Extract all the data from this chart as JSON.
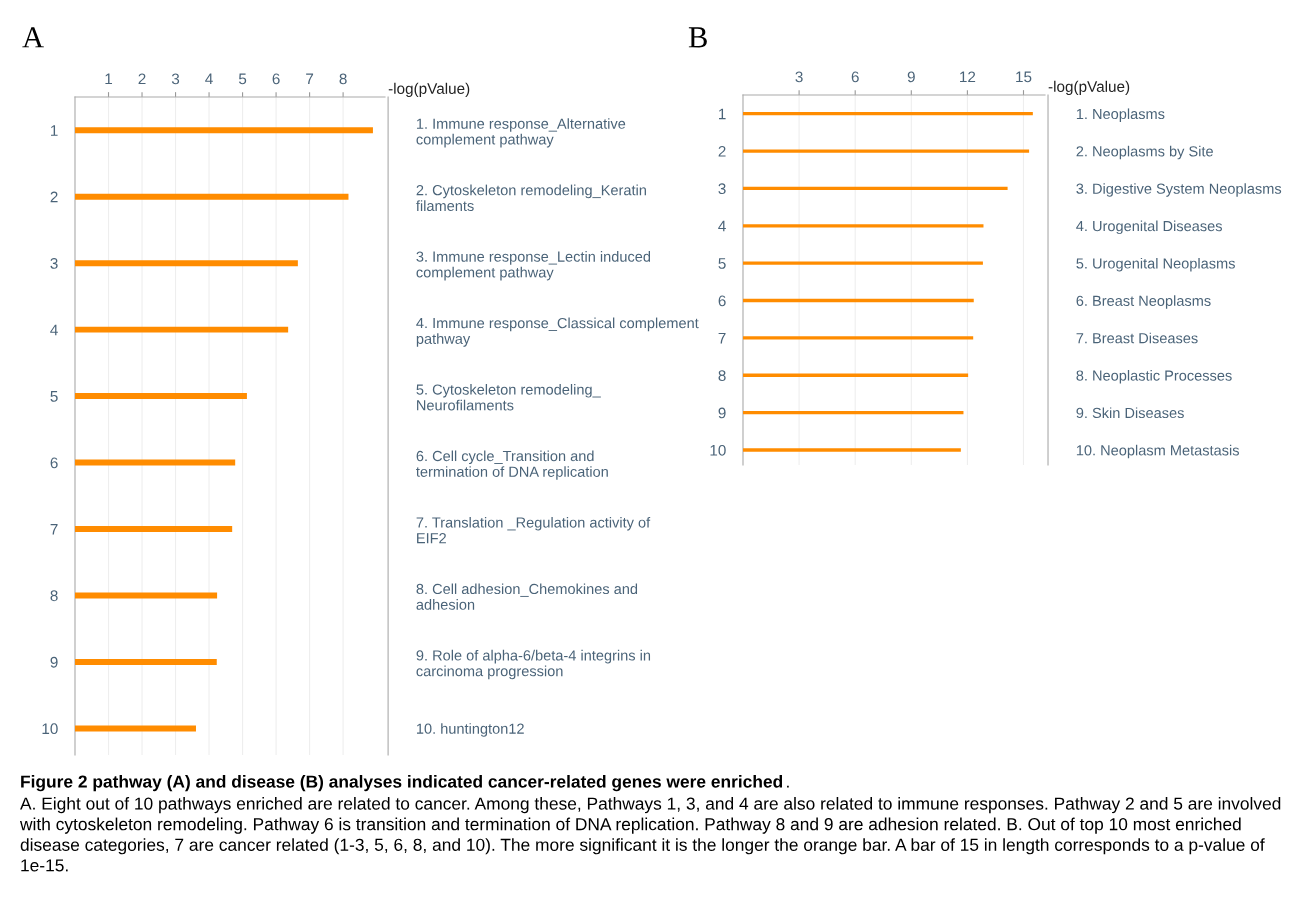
{
  "chart_data": [
    {
      "type": "bar",
      "orientation": "horizontal",
      "title": "A",
      "xlabel": "-log(pValue)",
      "color": "#ff8c00",
      "grid": "x",
      "categories": [
        "1",
        "2",
        "3",
        "4",
        "5",
        "6",
        "7",
        "8",
        "9",
        "10"
      ],
      "y2_categories": [
        "1. Immune response_Alternative\ncomplement pathway",
        "2. Cytoskeleton remodeling_Keratin\nfilaments",
        "3. Immune response_Lectin induced\ncomplement pathway",
        "4. Immune response_Classical complement\npathway",
        "5. Cytoskeleton remodeling_\nNeurofilaments",
        "6. Cell cycle_Transition and\ntermination of DNA replication",
        "7. Translation _Regulation activity of\nEIF2",
        "8. Cell adhesion_Chemokines and\nadhesion",
        "9. Role of alpha-6/beta-4 integrins in\ncarcinoma progression",
        "10. huntington12"
      ],
      "values": [
        8.89,
        8.16,
        6.65,
        6.36,
        5.13,
        4.78,
        4.69,
        4.24,
        4.23,
        3.61
      ],
      "xlim": [
        0,
        9.25
      ],
      "xticks": [
        1,
        2,
        3,
        4,
        5,
        6,
        7,
        8
      ],
      "annotations": [
        "Figure 2 pathway (A) and disease (B) analyses indicated cancer-related genes were enriched",
        ". A. Eight out of 10 pathways enriched are related to cancer. Among these, Pathways 1, 3, and 4 are also related to immune responses. Pathway 2 and 5 are involved with cytoskeleton remodeling. Pathway 6 is transition and termination of DNA replication. Pathway 8 and 9 are adhesion related. B. Out of top 10 most enriched disease categories, 7 are cancer related (1-3, 5, 6, 8, and 10). The more significant it is the longer the orange bar. A bar of 15 in length corresponds to a p-value of 1e-15."
      ]
    },
    {
      "type": "bar",
      "orientation": "horizontal",
      "title": "B",
      "xlabel": "-log(pValue)",
      "color": "#ff8c00",
      "grid": "x",
      "categories": [
        "1",
        "2",
        "3",
        "4",
        "5",
        "6",
        "7",
        "8",
        "9",
        "10"
      ],
      "y2_categories": [
        "1. Neoplasms",
        "2. Neoplasms by Site",
        "3. Digestive System Neoplasms",
        "4. Urogenital Diseases",
        "5. Urogenital Neoplasms",
        "6. Breast Neoplasms",
        "7. Breast Diseases",
        "8. Neoplastic Processes",
        "9. Skin Diseases",
        "10. Neoplasm Metastasis"
      ],
      "values": [
        15.5,
        15.3,
        14.15,
        12.86,
        12.83,
        12.34,
        12.31,
        12.04,
        11.79,
        11.65
      ],
      "xlim": [
        0,
        16.15
      ],
      "xticks": [
        3,
        6,
        9,
        12,
        15
      ]
    }
  ]
}
